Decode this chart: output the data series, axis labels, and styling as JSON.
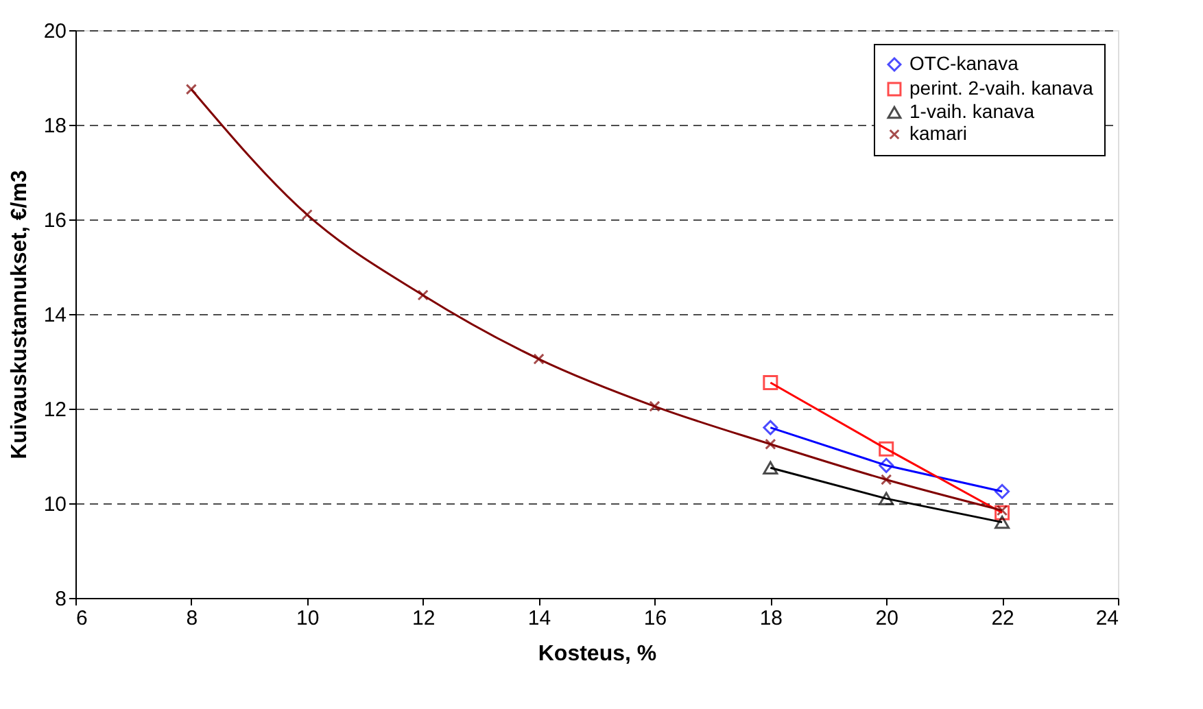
{
  "chart_data": {
    "type": "line",
    "xlabel": "Kosteus, %",
    "ylabel": "Kuivauskustannukset, €/m3",
    "xlim": [
      6,
      24
    ],
    "xticks": [
      6,
      8,
      10,
      12,
      14,
      16,
      18,
      20,
      22,
      24
    ],
    "ylim": [
      8,
      20
    ],
    "yticks": [
      8,
      10,
      12,
      14,
      16,
      18,
      20
    ],
    "grid": "y",
    "legend": "top right",
    "series": [
      {
        "name": "OTC-kanava",
        "color": "#0000ff",
        "marker": "diamond",
        "x": [
          18,
          20,
          22
        ],
        "values": [
          11.6,
          10.8,
          10.25
        ]
      },
      {
        "name": "perint. 2-vaih. kanava",
        "color": "#ff0000",
        "marker": "square",
        "x": [
          18,
          20,
          22
        ],
        "values": [
          12.55,
          11.15,
          9.8
        ]
      },
      {
        "name": "1-vaih. kanava",
        "color": "#000000",
        "marker": "triangle",
        "x": [
          18,
          20,
          22
        ],
        "values": [
          10.75,
          10.1,
          9.6
        ]
      },
      {
        "name": "kamari",
        "color": "#800000",
        "marker": "cross",
        "x": [
          8,
          10,
          12,
          14,
          16,
          18,
          20,
          22
        ],
        "values": [
          18.75,
          16.1,
          14.4,
          13.05,
          12.05,
          11.25,
          10.5,
          9.85
        ]
      }
    ]
  }
}
